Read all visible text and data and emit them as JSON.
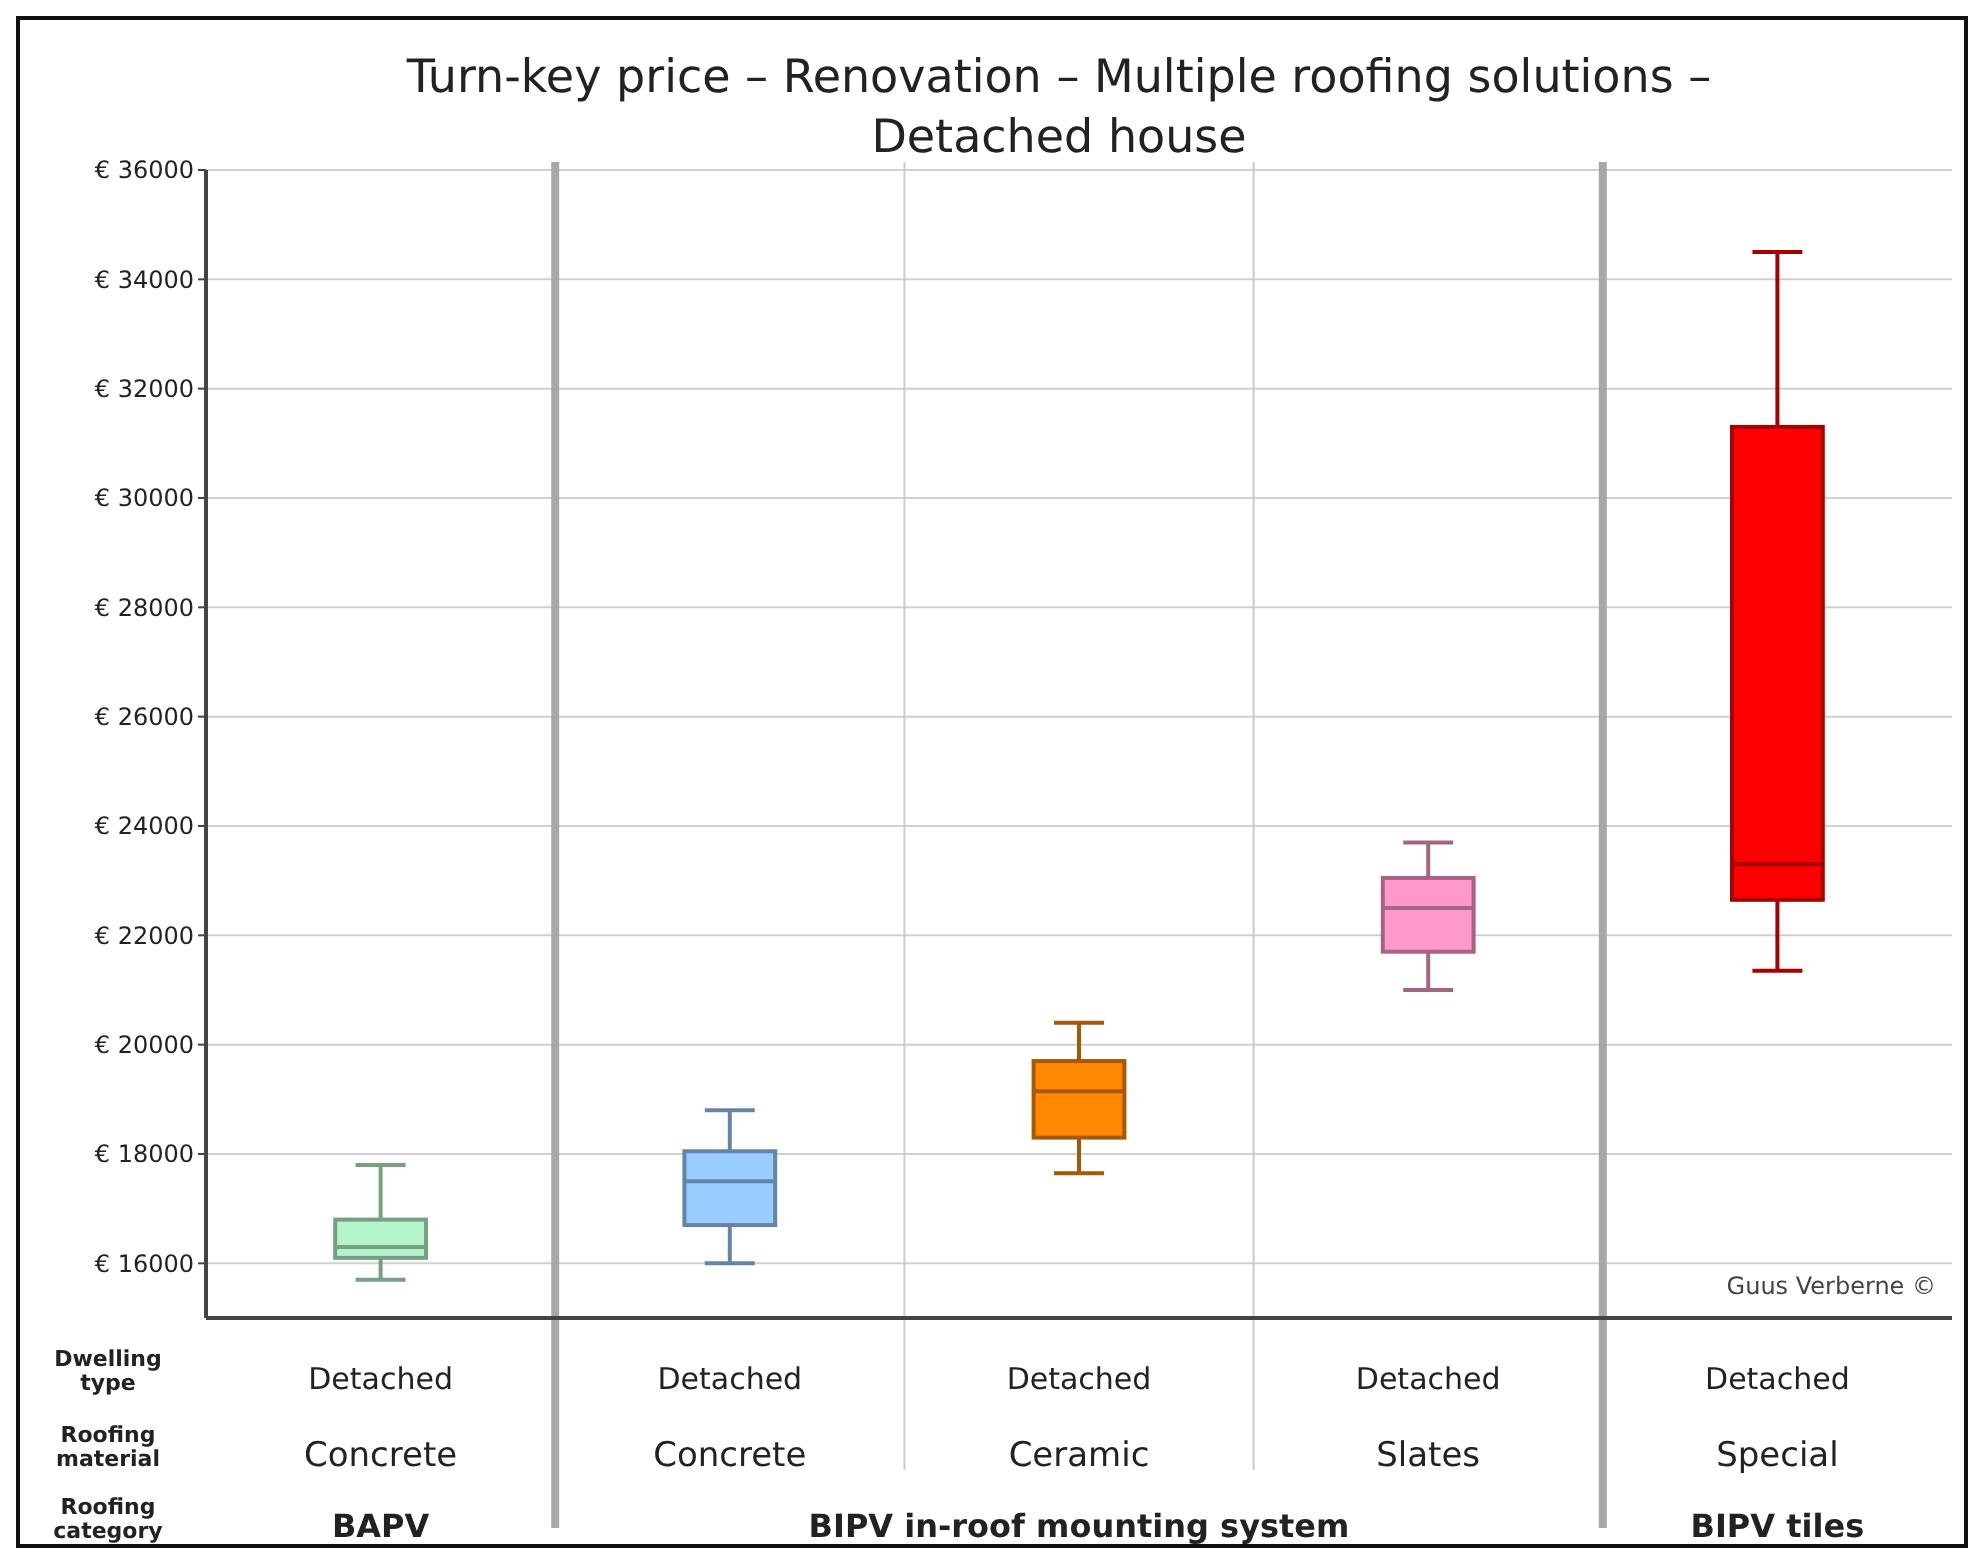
{
  "chart_data": {
    "type": "box",
    "title": "Turn-key price – Renovation – Multiple roofing solutions – Detached house",
    "categories": [
      "Concrete",
      "Concrete",
      "Ceramic",
      "Slates",
      "Special"
    ],
    "boxes": [
      {
        "low": 15700,
        "q1": 16100,
        "median": 16300,
        "q3": 16800,
        "high": 17800
      },
      {
        "low": 16000,
        "q1": 16700,
        "median": 17500,
        "q3": 18050,
        "high": 18800
      },
      {
        "low": 17650,
        "q1": 18300,
        "median": 19150,
        "q3": 19700,
        "high": 20400
      },
      {
        "low": 21000,
        "q1": 21700,
        "median": 22500,
        "q3": 23050,
        "high": 23700
      },
      {
        "low": 21350,
        "q1": 22650,
        "median": 23300,
        "q3": 31300,
        "high": 34500
      }
    ],
    "colors": [
      "#b3f5c8",
      "#99ccff",
      "#ff8800",
      "#ff99cc",
      "#ff0000"
    ],
    "ylim": [
      15000,
      36000
    ],
    "yticks": [
      {
        "value": 16000,
        "label": "€ 16000"
      },
      {
        "value": 18000,
        "label": "€ 18000"
      },
      {
        "value": 20000,
        "label": "€ 20000"
      },
      {
        "value": 22000,
        "label": "€ 22000"
      },
      {
        "value": 24000,
        "label": "€ 24000"
      },
      {
        "value": 26000,
        "label": "€ 26000"
      },
      {
        "value": 28000,
        "label": "€ 28000"
      },
      {
        "value": 30000,
        "label": "€ 30000"
      },
      {
        "value": 32000,
        "label": "€ 32000"
      },
      {
        "value": 34000,
        "label": "€ 34000"
      },
      {
        "value": 36000,
        "label": "€ 36000"
      }
    ],
    "grid": true,
    "annotations": [
      "Dwelling type",
      "Roofing material",
      "Roofing category",
      "Detached",
      "Detached",
      "Detached",
      "Detached",
      "Detached",
      "BAPV",
      "BIPV in-roof mounting system",
      "BIPV tiles",
      "Guus Verberne ©"
    ]
  }
}
